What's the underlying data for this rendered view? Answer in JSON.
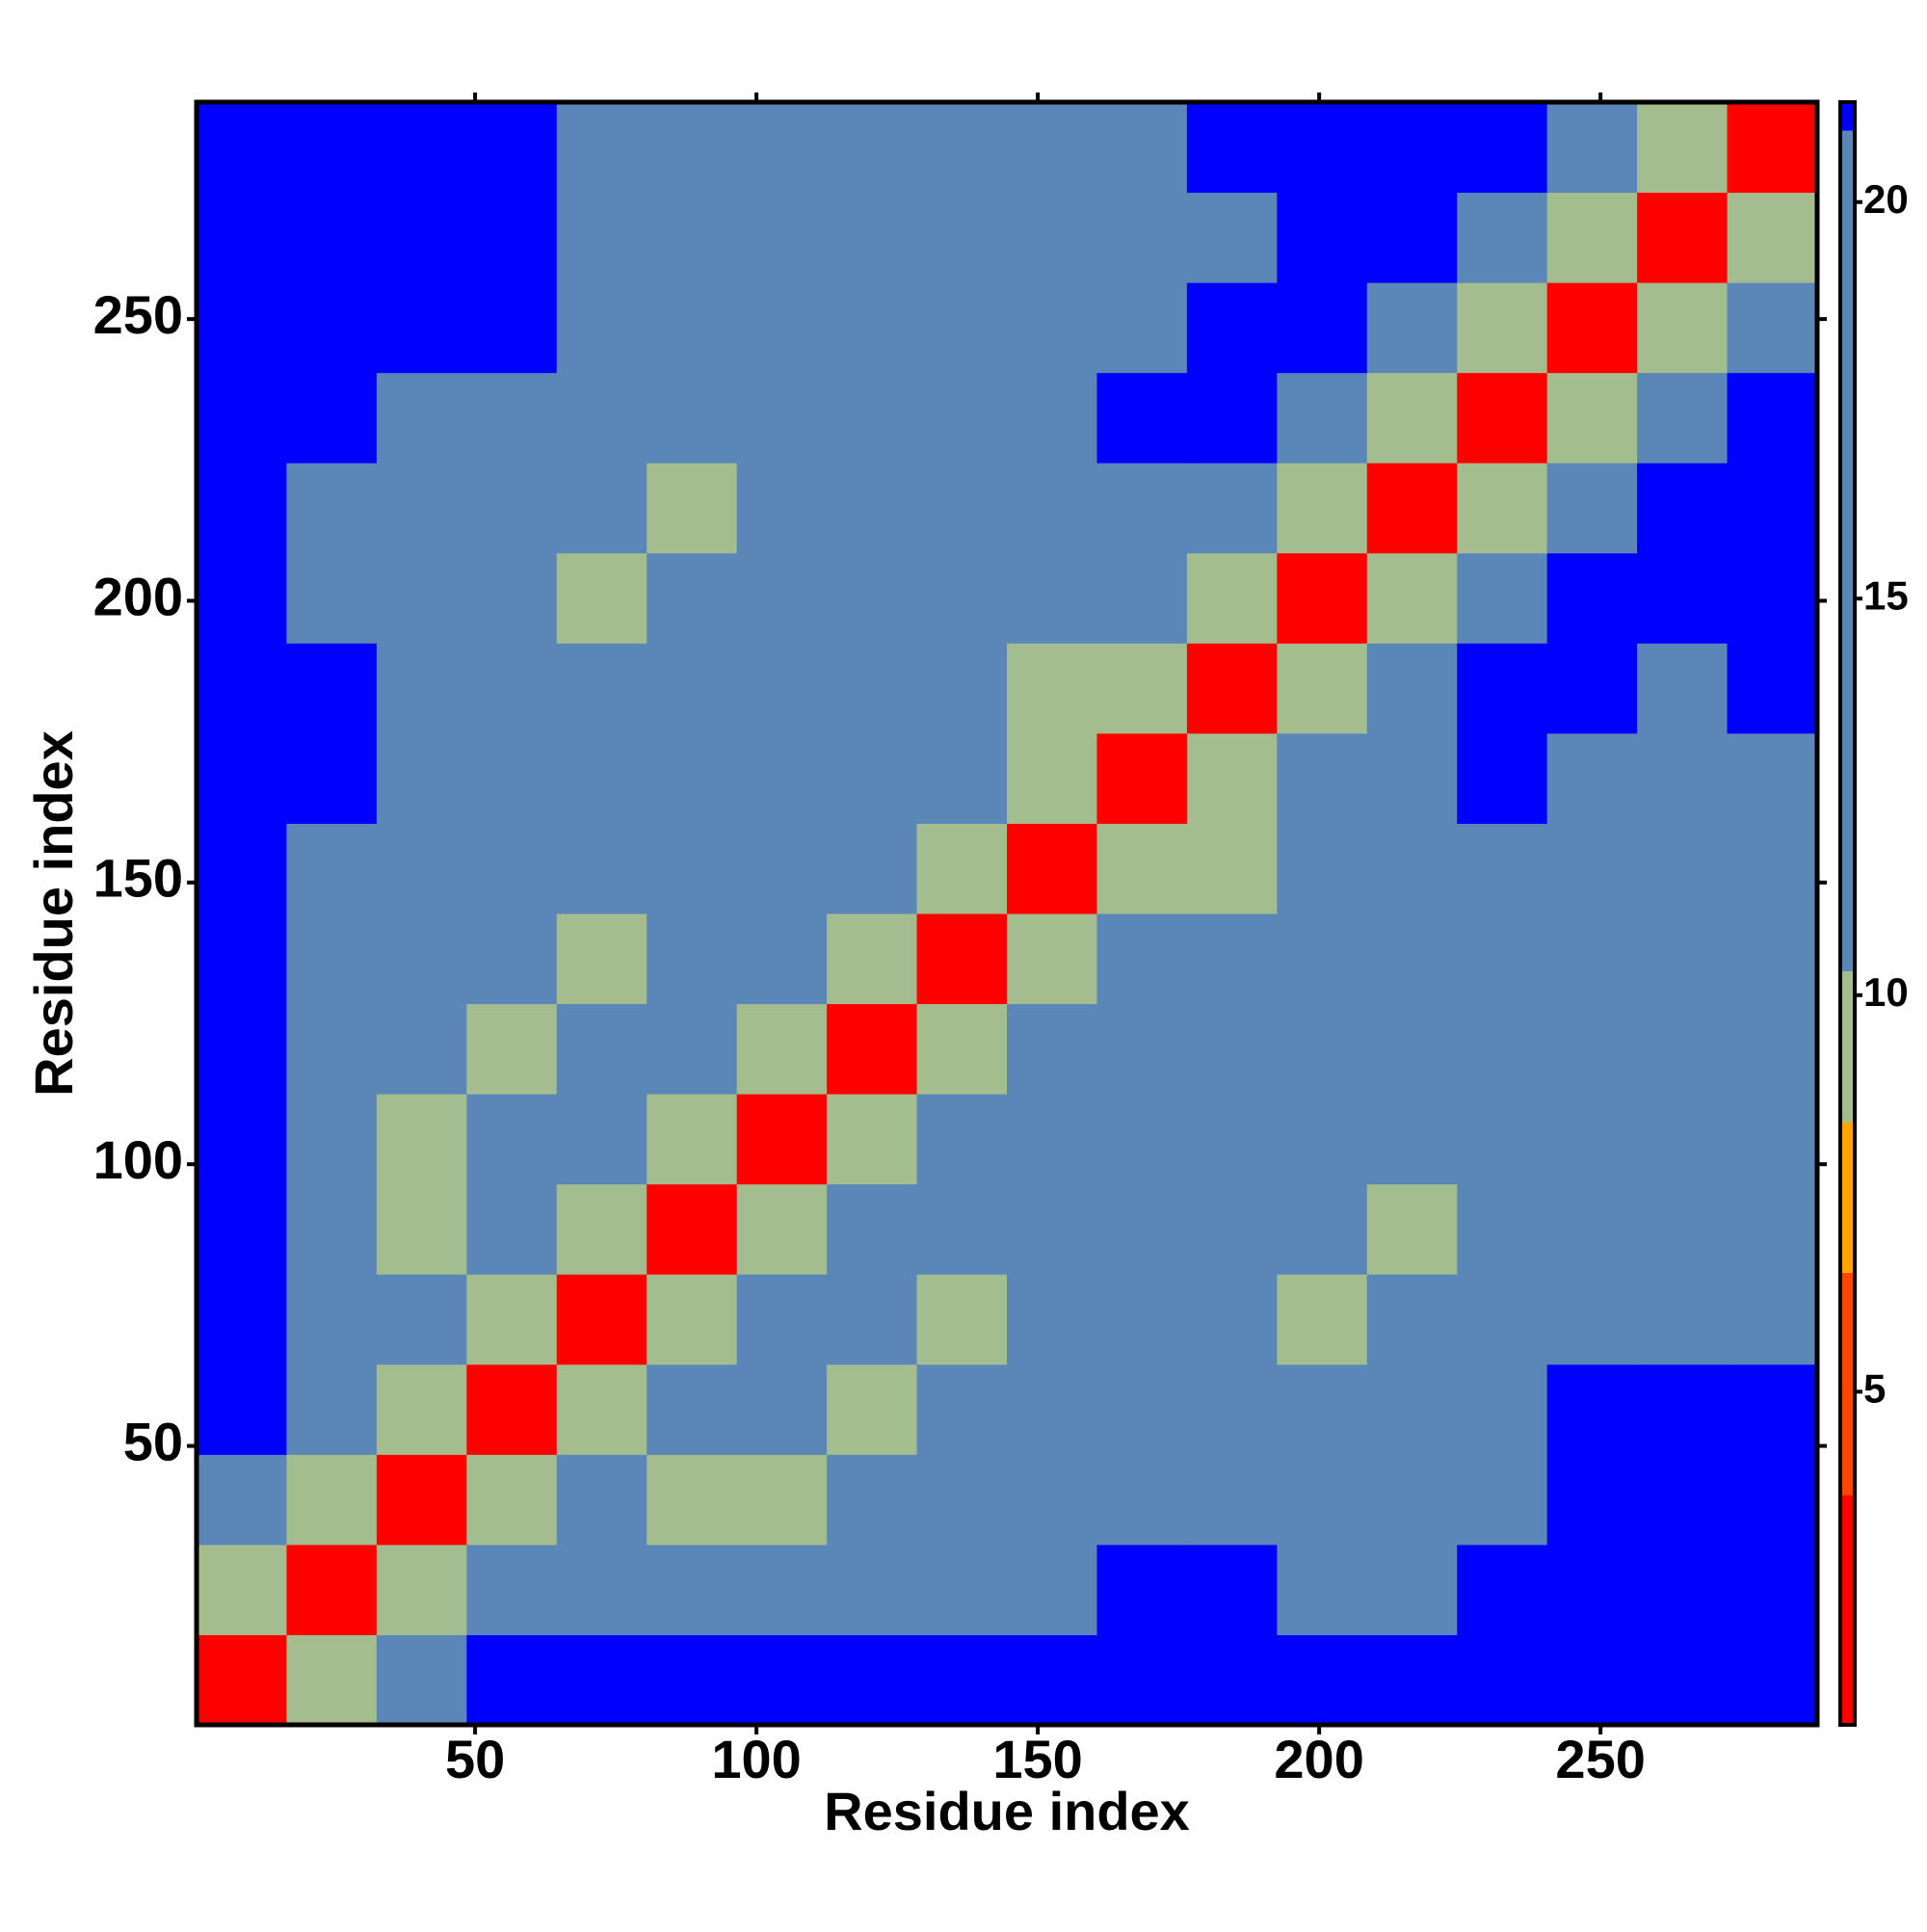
{
  "chart_data": {
    "type": "heatmap",
    "xlabel": "Residue index",
    "ylabel": "Residue index",
    "x": [
      8.5,
      24.5,
      40.5,
      56.5,
      72.5,
      88.5,
      104.5,
      120.5,
      136.5,
      152.5,
      168.5,
      184.5,
      200.5,
      216.5,
      232.5,
      248.5,
      264.5,
      280.5
    ],
    "y": [
      8.5,
      24.5,
      40.5,
      56.5,
      72.5,
      88.5,
      104.5,
      120.5,
      136.5,
      152.5,
      168.5,
      184.5,
      200.5,
      216.5,
      232.5,
      248.5,
      264.5,
      280.5
    ],
    "z": [
      [
        3,
        9,
        19,
        21,
        21,
        21,
        21,
        21,
        21,
        21,
        21,
        21,
        21,
        21,
        21,
        21,
        21,
        21
      ],
      [
        9,
        3,
        9,
        16,
        19,
        16,
        12,
        16,
        19,
        19,
        21,
        21,
        19,
        16,
        21,
        21,
        21,
        21
      ],
      [
        19,
        9,
        3,
        9,
        16,
        10,
        10,
        13,
        16,
        16,
        19,
        19,
        16,
        16,
        19,
        21,
        21,
        21
      ],
      [
        21,
        16,
        9,
        3,
        10,
        12,
        20,
        10,
        12,
        16,
        19,
        19,
        16,
        16,
        19,
        21,
        21,
        21
      ],
      [
        21,
        19,
        16,
        10,
        3,
        9,
        19,
        18,
        10,
        13,
        16,
        17,
        9,
        13,
        16,
        18,
        19,
        19
      ],
      [
        21,
        16,
        10,
        12,
        9,
        3,
        9,
        16,
        13,
        16,
        16,
        19,
        16,
        10,
        16,
        18,
        19,
        19
      ],
      [
        21,
        12,
        10,
        20,
        19,
        9,
        3,
        9,
        12,
        16,
        16,
        19,
        20,
        14,
        18,
        19,
        19,
        20
      ],
      [
        21,
        16,
        13,
        10,
        18,
        16,
        9,
        3,
        9,
        16,
        16,
        20,
        20,
        12,
        17,
        19,
        17,
        17
      ],
      [
        21,
        19,
        16,
        12,
        10,
        13,
        12,
        9,
        3,
        9,
        13,
        16,
        12,
        16,
        19,
        17,
        16,
        16
      ],
      [
        21,
        19,
        16,
        16,
        13,
        16,
        16,
        16,
        9,
        3,
        9,
        10,
        15,
        18,
        19,
        17,
        16,
        16
      ],
      [
        21,
        21,
        19,
        19,
        16,
        16,
        16,
        16,
        13,
        9,
        3,
        9,
        15,
        19,
        21,
        19,
        17,
        19
      ],
      [
        21,
        21,
        19,
        19,
        17,
        19,
        19,
        20,
        16,
        10,
        9,
        3,
        9,
        17,
        21,
        21,
        20,
        21
      ],
      [
        21,
        19,
        16,
        16,
        9,
        16,
        20,
        20,
        12,
        15,
        15,
        9,
        3,
        9,
        18,
        21,
        21,
        21
      ],
      [
        21,
        16,
        16,
        16,
        13,
        10,
        14,
        12,
        16,
        18,
        19,
        17,
        9,
        3,
        9,
        18,
        21,
        21
      ],
      [
        21,
        21,
        19,
        19,
        16,
        16,
        18,
        17,
        19,
        19,
        21,
        21,
        18,
        9,
        3,
        9,
        18,
        21
      ],
      [
        21,
        21,
        21,
        21,
        18,
        18,
        19,
        19,
        17,
        17,
        19,
        21,
        21,
        18,
        9,
        3,
        9,
        18
      ],
      [
        21,
        21,
        21,
        21,
        19,
        19,
        19,
        17,
        16,
        16,
        17,
        20,
        21,
        21,
        18,
        9,
        3,
        9
      ],
      [
        21,
        21,
        21,
        21,
        19,
        19,
        20,
        17,
        16,
        16,
        19,
        21,
        21,
        21,
        21,
        18,
        9,
        3
      ]
    ],
    "xlim": [
      0.5,
      288.5
    ],
    "ylim": [
      0.5,
      288.5
    ],
    "xticks": [
      50,
      100,
      150,
      200,
      250
    ],
    "yticks": [
      50,
      100,
      150,
      200,
      250
    ],
    "colorbar": {
      "lim": [
        0.8,
        21.26
      ],
      "ticks": [
        5,
        10,
        15,
        20
      ],
      "bands": [
        {
          "min": 0.8,
          "max": 3.7,
          "color": "#ff0000"
        },
        {
          "min": 3.7,
          "max": 6.5,
          "color": "#ff4500"
        },
        {
          "min": 6.5,
          "max": 8.4,
          "color": "#ffa500"
        },
        {
          "min": 8.4,
          "max": 10.3,
          "color": "#a4bd8e"
        },
        {
          "min": 10.3,
          "max": 20.9,
          "color": "#5b87b8"
        },
        {
          "min": 20.9,
          "max": 21.26,
          "color": "#0000ff"
        }
      ]
    }
  }
}
